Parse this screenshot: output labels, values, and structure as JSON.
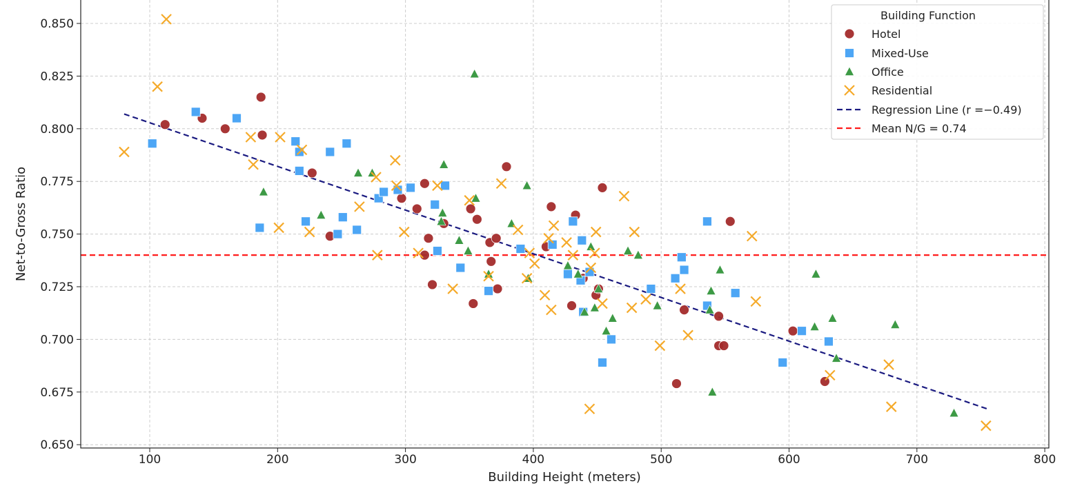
{
  "chart_data": {
    "type": "scatter",
    "title": "",
    "xlabel": "Building Height (meters)",
    "ylabel": "Net-to-Gross Ratio",
    "xlim": [
      46,
      803
    ],
    "ylim": [
      0.648,
      0.861
    ],
    "xticks": [
      100,
      200,
      300,
      400,
      500,
      600,
      700,
      800
    ],
    "xtick_labels": [
      "100",
      "200",
      "300",
      "400",
      "500",
      "600",
      "700",
      "800"
    ],
    "yticks": [
      0.65,
      0.675,
      0.7,
      0.725,
      0.75,
      0.775,
      0.8,
      0.825,
      0.85
    ],
    "ytick_labels": [
      "0.650",
      "0.675",
      "0.700",
      "0.725",
      "0.750",
      "0.775",
      "0.800",
      "0.825",
      "0.850"
    ],
    "grid": true,
    "legend": {
      "title": "Building Function",
      "placement": "top-right"
    },
    "series": [
      {
        "name": "Hotel",
        "marker": "circle",
        "color": "#a32b2b",
        "points": [
          [
            112,
            0.802
          ],
          [
            141,
            0.805
          ],
          [
            159,
            0.8
          ],
          [
            187,
            0.815
          ],
          [
            188,
            0.797
          ],
          [
            227,
            0.779
          ],
          [
            241,
            0.749
          ],
          [
            297,
            0.767
          ],
          [
            309,
            0.762
          ],
          [
            315,
            0.774
          ],
          [
            315,
            0.74
          ],
          [
            318,
            0.748
          ],
          [
            321,
            0.726
          ],
          [
            330,
            0.755
          ],
          [
            351,
            0.762
          ],
          [
            353,
            0.717
          ],
          [
            356,
            0.757
          ],
          [
            366,
            0.746
          ],
          [
            367,
            0.737
          ],
          [
            371,
            0.748
          ],
          [
            372,
            0.724
          ],
          [
            379,
            0.782
          ],
          [
            410,
            0.744
          ],
          [
            414,
            0.763
          ],
          [
            430,
            0.716
          ],
          [
            433,
            0.759
          ],
          [
            439,
            0.729
          ],
          [
            449,
            0.721
          ],
          [
            451,
            0.724
          ],
          [
            454,
            0.772
          ],
          [
            512,
            0.679
          ],
          [
            518,
            0.714
          ],
          [
            545,
            0.711
          ],
          [
            545,
            0.697
          ],
          [
            549,
            0.697
          ],
          [
            554,
            0.756
          ],
          [
            603,
            0.704
          ],
          [
            628,
            0.68
          ]
        ]
      },
      {
        "name": "Mixed-Use",
        "marker": "square",
        "color": "#4da6f5",
        "points": [
          [
            102,
            0.793
          ],
          [
            136,
            0.808
          ],
          [
            168,
            0.805
          ],
          [
            186,
            0.753
          ],
          [
            214,
            0.794
          ],
          [
            217,
            0.789
          ],
          [
            217,
            0.78
          ],
          [
            222,
            0.756
          ],
          [
            241,
            0.789
          ],
          [
            247,
            0.75
          ],
          [
            251,
            0.758
          ],
          [
            254,
            0.793
          ],
          [
            262,
            0.752
          ],
          [
            279,
            0.767
          ],
          [
            283,
            0.77
          ],
          [
            294,
            0.771
          ],
          [
            304,
            0.772
          ],
          [
            323,
            0.764
          ],
          [
            325,
            0.742
          ],
          [
            331,
            0.773
          ],
          [
            343,
            0.734
          ],
          [
            365,
            0.723
          ],
          [
            390,
            0.743
          ],
          [
            415,
            0.745
          ],
          [
            427,
            0.731
          ],
          [
            431,
            0.756
          ],
          [
            437,
            0.728
          ],
          [
            438,
            0.747
          ],
          [
            439,
            0.713
          ],
          [
            444,
            0.732
          ],
          [
            454,
            0.689
          ],
          [
            461,
            0.7
          ],
          [
            492,
            0.724
          ],
          [
            511,
            0.729
          ],
          [
            516,
            0.739
          ],
          [
            518,
            0.733
          ],
          [
            536,
            0.756
          ],
          [
            536,
            0.716
          ],
          [
            558,
            0.722
          ],
          [
            595,
            0.689
          ],
          [
            610,
            0.704
          ],
          [
            631,
            0.699
          ]
        ]
      },
      {
        "name": "Office",
        "marker": "triangle",
        "color": "#3d9a45",
        "points": [
          [
            189,
            0.77
          ],
          [
            234,
            0.759
          ],
          [
            263,
            0.779
          ],
          [
            274,
            0.779
          ],
          [
            330,
            0.783
          ],
          [
            329,
            0.76
          ],
          [
            328,
            0.756
          ],
          [
            342,
            0.747
          ],
          [
            349,
            0.742
          ],
          [
            354,
            0.826
          ],
          [
            355,
            0.767
          ],
          [
            365,
            0.731
          ],
          [
            383,
            0.755
          ],
          [
            395,
            0.773
          ],
          [
            396,
            0.729
          ],
          [
            427,
            0.735
          ],
          [
            435,
            0.731
          ],
          [
            440,
            0.713
          ],
          [
            445,
            0.744
          ],
          [
            448,
            0.715
          ],
          [
            451,
            0.724
          ],
          [
            457,
            0.704
          ],
          [
            462,
            0.71
          ],
          [
            474,
            0.742
          ],
          [
            482,
            0.74
          ],
          [
            497,
            0.716
          ],
          [
            539,
            0.723
          ],
          [
            538,
            0.714
          ],
          [
            540,
            0.675
          ],
          [
            546,
            0.733
          ],
          [
            620,
            0.706
          ],
          [
            621,
            0.731
          ],
          [
            634,
            0.71
          ],
          [
            637,
            0.691
          ],
          [
            683,
            0.707
          ],
          [
            729,
            0.665
          ]
        ]
      },
      {
        "name": "Residential",
        "marker": "x",
        "color": "#f5aa2a",
        "points": [
          [
            80,
            0.789
          ],
          [
            113,
            0.852
          ],
          [
            106,
            0.82
          ],
          [
            179,
            0.796
          ],
          [
            181,
            0.783
          ],
          [
            201,
            0.753
          ],
          [
            202,
            0.796
          ],
          [
            219,
            0.79
          ],
          [
            225,
            0.751
          ],
          [
            264,
            0.763
          ],
          [
            278,
            0.74
          ],
          [
            277,
            0.777
          ],
          [
            292,
            0.785
          ],
          [
            293,
            0.773
          ],
          [
            299,
            0.751
          ],
          [
            310,
            0.741
          ],
          [
            325,
            0.773
          ],
          [
            337,
            0.724
          ],
          [
            350,
            0.766
          ],
          [
            365,
            0.73
          ],
          [
            375,
            0.774
          ],
          [
            388,
            0.752
          ],
          [
            395,
            0.729
          ],
          [
            401,
            0.736
          ],
          [
            397,
            0.741
          ],
          [
            409,
            0.721
          ],
          [
            412,
            0.748
          ],
          [
            414,
            0.714
          ],
          [
            416,
            0.754
          ],
          [
            426,
            0.746
          ],
          [
            431,
            0.74
          ],
          [
            444,
            0.667
          ],
          [
            445,
            0.734
          ],
          [
            449,
            0.751
          ],
          [
            448,
            0.741
          ],
          [
            454,
            0.717
          ],
          [
            471,
            0.768
          ],
          [
            477,
            0.715
          ],
          [
            479,
            0.751
          ],
          [
            488,
            0.719
          ],
          [
            499,
            0.697
          ],
          [
            515,
            0.724
          ],
          [
            521,
            0.702
          ],
          [
            571,
            0.749
          ],
          [
            574,
            0.718
          ],
          [
            632,
            0.683
          ],
          [
            678,
            0.688
          ],
          [
            680,
            0.668
          ],
          [
            754,
            0.659
          ]
        ]
      }
    ],
    "lines": [
      {
        "name": "Regression Line",
        "label": "Regression Line (r =−0.49)",
        "color": "#1a1a80",
        "style": "dashed",
        "from": [
          80,
          0.807
        ],
        "to": [
          755,
          0.667
        ]
      },
      {
        "name": "Mean N/G",
        "label": "Mean N/G = 0.74",
        "color": "#ff1a1a",
        "style": "dashed",
        "y": 0.74
      }
    ],
    "legend_labels": [
      "Hotel",
      "Mixed-Use",
      "Office",
      "Residential",
      "Regression Line (r =−0.49)",
      "Mean N/G = 0.74"
    ]
  }
}
